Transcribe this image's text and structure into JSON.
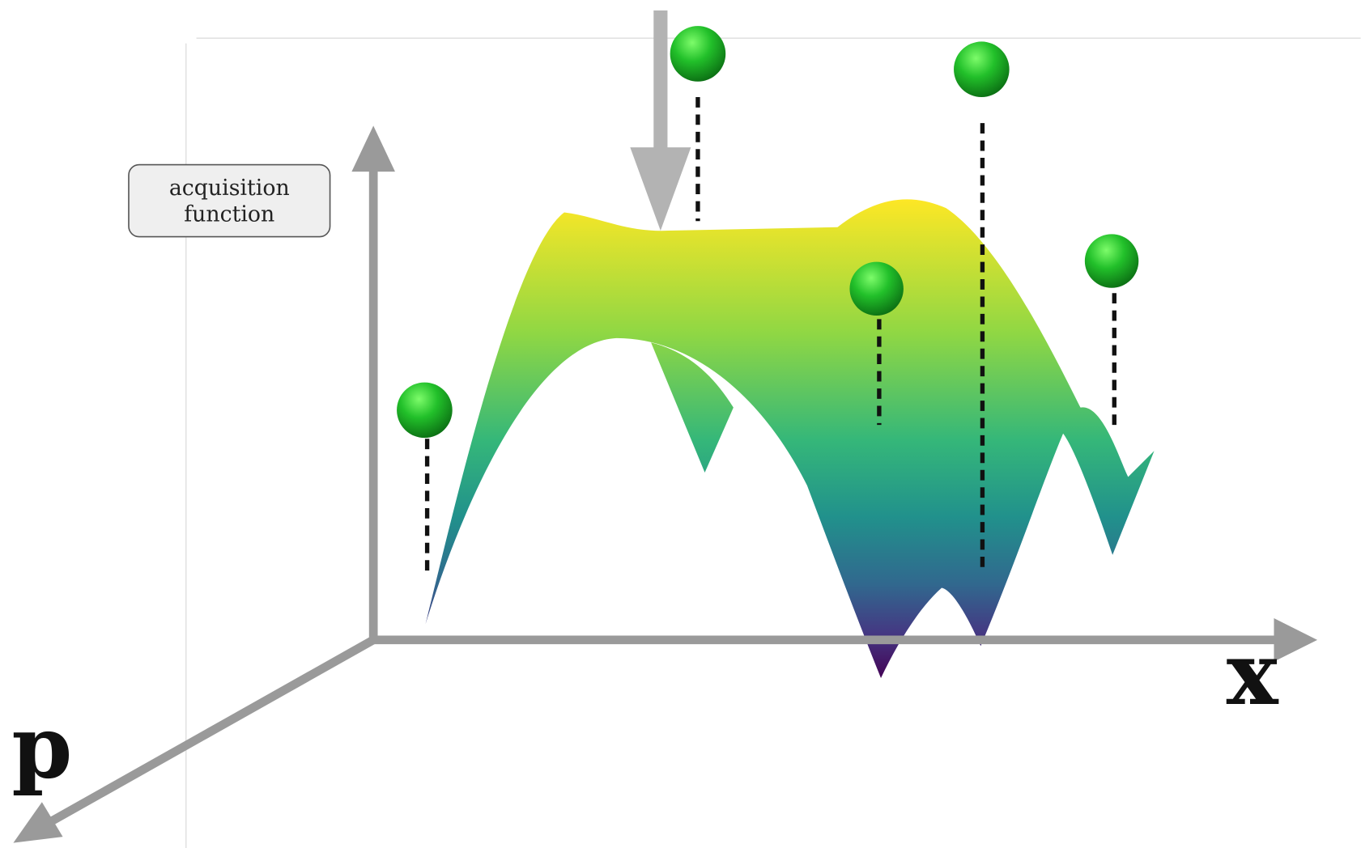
{
  "box_label": {
    "lines": [
      "acquisition",
      "function"
    ]
  },
  "axes": {
    "x": "x",
    "p": "p"
  }
}
